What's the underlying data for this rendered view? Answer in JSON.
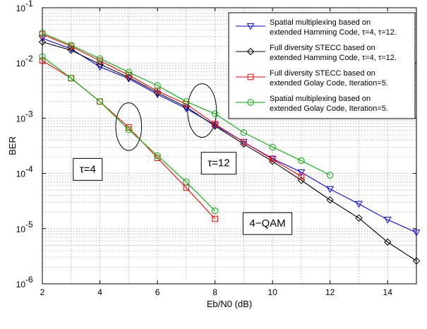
{
  "chart_data": {
    "type": "line",
    "title": "",
    "xlabel": "Eb/N0 (dB)",
    "ylabel": "BER",
    "xlim": [
      2,
      15
    ],
    "ylim": [
      1e-06,
      0.1
    ],
    "yscale": "log",
    "grid": true,
    "legend_position": "top-right",
    "x_ticks": [
      "2",
      "4",
      "6",
      "8",
      "10",
      "12",
      "14"
    ],
    "y_ticks": [
      {
        "base": "10",
        "exp": "-6"
      },
      {
        "base": "10",
        "exp": "-5"
      },
      {
        "base": "10",
        "exp": "-4"
      },
      {
        "base": "10",
        "exp": "-3"
      },
      {
        "base": "10",
        "exp": "-2"
      },
      {
        "base": "10",
        "exp": "-1"
      }
    ],
    "series": [
      {
        "name_lines": [
          "Spatial multiplexing based on",
          "extended Hamming Code, τ=4, τ=12."
        ],
        "color": "#0000ff",
        "marker": "triangle-down",
        "groups": [
          {
            "x": [
              2,
              3,
              4,
              5,
              6,
              7,
              8,
              9,
              10,
              11,
              12,
              13,
              14,
              15
            ],
            "y": [
              0.028,
              0.018,
              0.0085,
              0.0052,
              0.0027,
              0.0015,
              0.00075,
              0.00037,
              0.000185,
              0.000105,
              5.2e-05,
              2.8e-05,
              1.45e-05,
              8.5e-06
            ]
          }
        ]
      },
      {
        "name_lines": [
          "Full diversity STECC based on",
          "extended Hamming Code, τ=4, τ=12."
        ],
        "color": "#000000",
        "marker": "diamond",
        "groups": [
          {
            "x": [
              2,
              3,
              4,
              5,
              6,
              7,
              8,
              9,
              10,
              11,
              12,
              13,
              14,
              15
            ],
            "y": [
              0.024,
              0.017,
              0.0095,
              0.0055,
              0.0029,
              0.0016,
              0.00072,
              0.00034,
              0.000165,
              7.5e-05,
              3.3e-05,
              1.55e-05,
              5.7e-06,
              2.6e-06
            ]
          }
        ]
      },
      {
        "name_lines": [
          "Full diversity STECC based on",
          "extended Golay Code, Iteration=5."
        ],
        "color": "#ff0000",
        "marker": "square",
        "groups": [
          {
            "x": [
              2,
              3,
              4,
              5,
              6,
              7,
              8
            ],
            "y": [
              0.011,
              0.0053,
              0.002,
              0.00068,
              0.00019,
              5.5e-05,
              1.5e-05
            ]
          },
          {
            "x": [
              2,
              3,
              4,
              5,
              6,
              7,
              8,
              9,
              10,
              11
            ],
            "y": [
              0.033,
              0.02,
              0.011,
              0.006,
              0.0031,
              0.0018,
              0.00078,
              0.00037,
              0.00018,
              8.8e-05
            ]
          }
        ]
      },
      {
        "name_lines": [
          "Spatial multiplexing based on",
          "extended Golay Code, Iteration=5."
        ],
        "color": "#00aa00",
        "marker": "circle",
        "groups": [
          {
            "x": [
              2,
              3,
              4,
              5,
              6,
              7,
              8
            ],
            "y": [
              0.013,
              0.0053,
              0.002,
              0.00062,
              0.00021,
              7e-05,
              2.1e-05
            ]
          },
          {
            "x": [
              2,
              3,
              4,
              5,
              6,
              7,
              8,
              9,
              10,
              11,
              12
            ],
            "y": [
              0.035,
              0.021,
              0.012,
              0.0068,
              0.0039,
              0.002,
              0.0012,
              0.00055,
              0.0003,
              0.00017,
              9.3e-05
            ]
          }
        ]
      }
    ],
    "annotations": [
      {
        "text": "τ=4",
        "x": 3.05,
        "y": 0.00012
      },
      {
        "text": "τ=12",
        "x": 7.5,
        "y": 0.000155
      },
      {
        "text": "4−QAM",
        "x": 8.95,
        "y": 1.25e-05
      }
    ],
    "ellipses": [
      {
        "cx": 5.0,
        "cy": 0.00068,
        "rx_dB": 0.45,
        "y_top": 0.0019,
        "y_bottom": 0.00026
      },
      {
        "cx": 7.55,
        "cy": 0.0015,
        "rx_dB": 0.5,
        "y_top": 0.0042,
        "y_bottom": 0.00045
      }
    ]
  }
}
